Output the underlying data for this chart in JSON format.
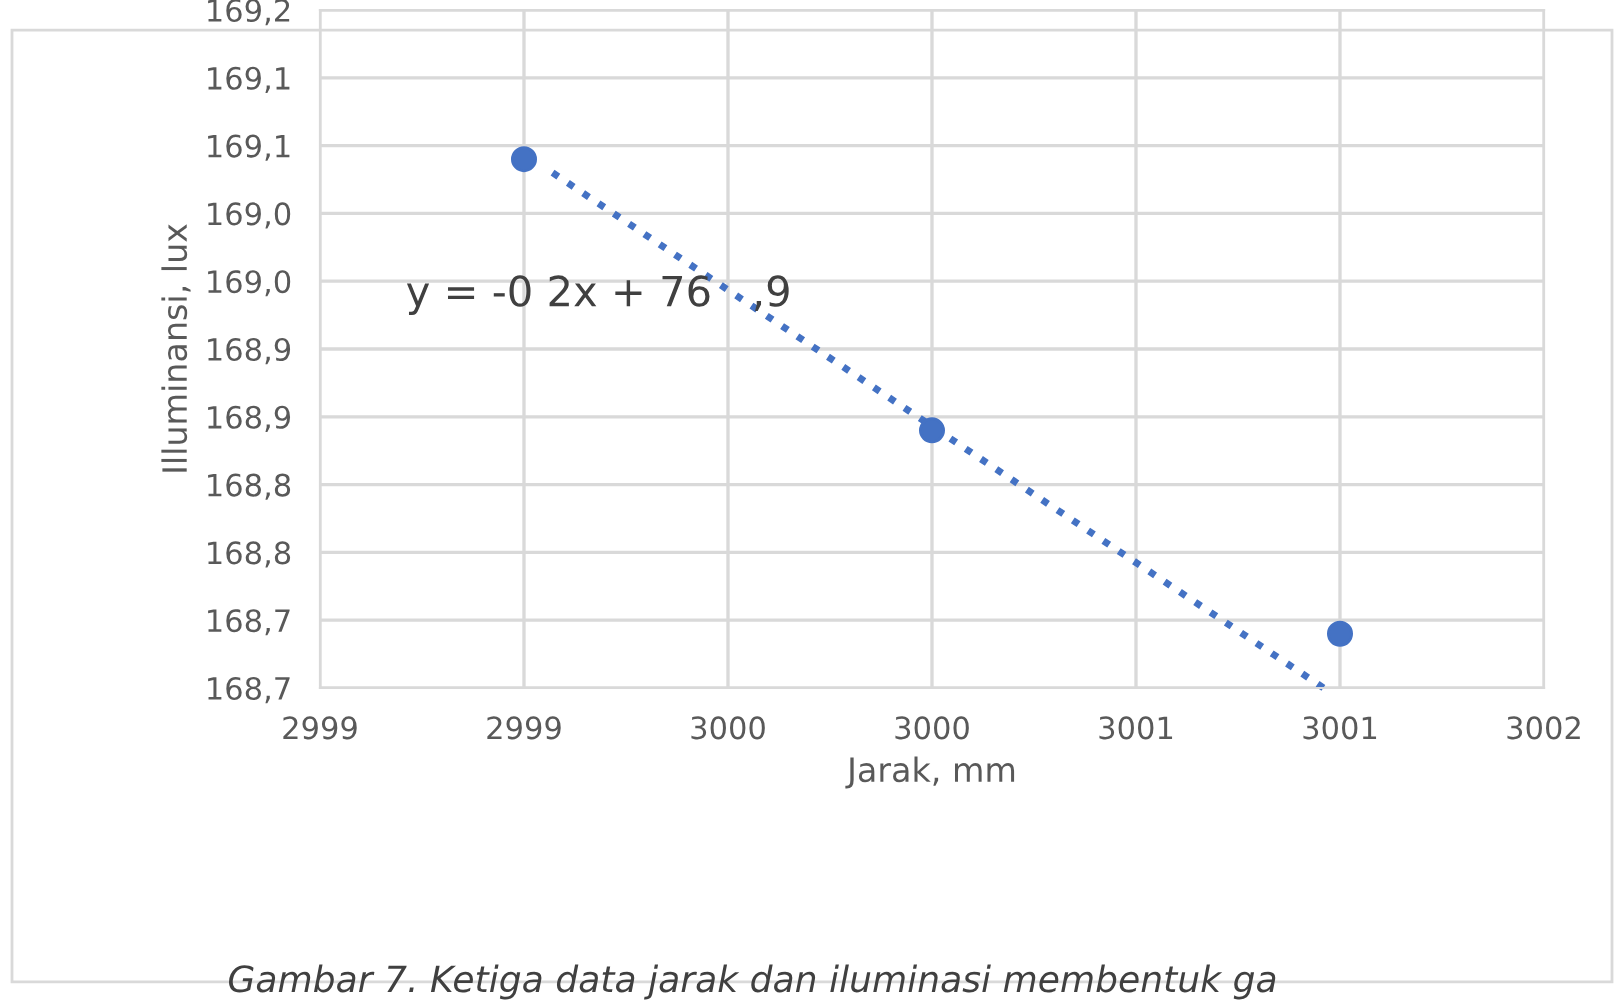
{
  "chart_data": {
    "type": "scatter",
    "xlabel": "Jarak, mm",
    "ylabel": "Illuminansi, lux",
    "series": [
      {
        "color": "#4472c4",
        "x": [
          2999,
          3000,
          3001
        ],
        "values": [
          169.04,
          168.84,
          168.69
        ],
        "marker": "circle"
      },
      {
        "type": "line",
        "color": "#4472c4",
        "x": [
          2999.07,
          3000.96
        ],
        "values": [
          169.03,
          168.65
        ],
        "line_style": "dotted",
        "marker": "none"
      }
    ],
    "xlim": [
      2998.5,
      3001.5
    ],
    "xticks": [
      {
        "value": 2998.5,
        "label": "2999"
      },
      2999,
      {
        "value": 2999.5,
        "label": "3000"
      },
      3000,
      {
        "value": 3000.5,
        "label": "3001"
      },
      3001,
      {
        "value": 3001.5,
        "label": "3002"
      }
    ],
    "ylim": [
      168.65,
      169.15
    ],
    "yticks": [
      {
        "value": 168.65,
        "label": "168,7"
      },
      {
        "value": 168.7,
        "label": "168,7"
      },
      {
        "value": 168.75,
        "label": "168,8"
      },
      {
        "value": 168.8,
        "label": "168,8"
      },
      {
        "value": 168.85,
        "label": "168,9"
      },
      {
        "value": 168.9,
        "label": "168,9"
      },
      {
        "value": 168.95,
        "label": "169,0"
      },
      {
        "value": 169.0,
        "label": "169,0"
      },
      {
        "value": 169.05,
        "label": "169,1"
      },
      {
        "value": 169.1,
        "label": "169,1"
      },
      {
        "value": 169.15,
        "label": "169,2"
      }
    ],
    "grid": true,
    "legend": false,
    "annotations": [
      "y = -0 2x + 76   ,9",
      "Gambar 7. Ketiga data jarak dan iluminasi membentuk ga"
    ]
  }
}
